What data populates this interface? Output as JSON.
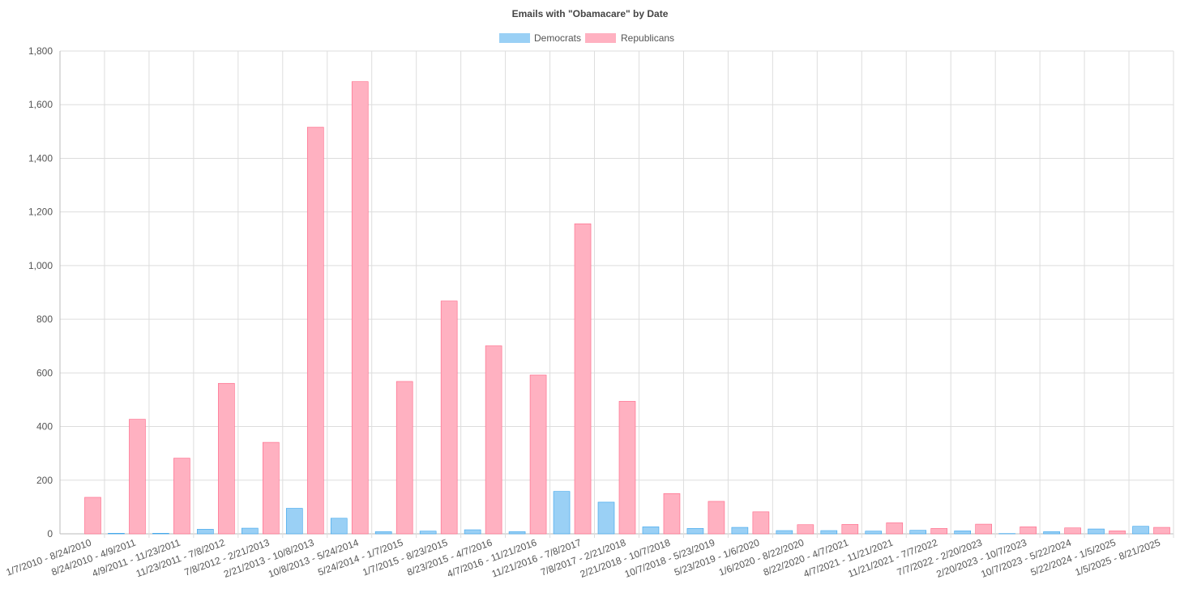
{
  "chart_data": {
    "type": "bar",
    "title": "Emails with \"Obamacare\" by Date",
    "legend_position": "top-center",
    "grid": true,
    "ylim": [
      0,
      1800
    ],
    "yticks": [
      0,
      200,
      400,
      600,
      800,
      1000,
      1200,
      1400,
      1600,
      1800
    ],
    "ytick_labels": [
      "0",
      "200",
      "400",
      "600",
      "800",
      "1,000",
      "1,200",
      "1,400",
      "1,600",
      "1,800"
    ],
    "categories": [
      "1/7/2010 - 8/24/2010",
      "8/24/2010 - 4/9/2011",
      "4/9/2011 - 11/23/2011",
      "11/23/2011 - 7/8/2012",
      "7/8/2012 - 2/21/2013",
      "2/21/2013 - 10/8/2013",
      "10/8/2013 - 5/24/2014",
      "5/24/2014 - 1/7/2015",
      "1/7/2015 - 8/23/2015",
      "8/23/2015 - 4/7/2016",
      "4/7/2016 - 11/21/2016",
      "11/21/2016 - 7/8/2017",
      "7/8/2017 - 2/21/2018",
      "2/21/2018 - 10/7/2018",
      "10/7/2018 - 5/23/2019",
      "5/23/2019 - 1/6/2020",
      "1/6/2020 - 8/22/2020",
      "8/22/2020 - 4/7/2021",
      "4/7/2021 - 11/21/2021",
      "11/21/2021 - 7/7/2022",
      "7/7/2022 - 2/20/2023",
      "2/20/2023 - 10/7/2023",
      "10/7/2023 - 5/22/2024",
      "5/22/2024 - 1/5/2025",
      "1/5/2025 - 8/21/2025"
    ],
    "series": [
      {
        "name": "Democrats",
        "color": "#9ad0f5",
        "border": "#36a2eb",
        "values": [
          0,
          2,
          2,
          17,
          21,
          95,
          58,
          8,
          10,
          15,
          8,
          158,
          118,
          26,
          20,
          24,
          12,
          12,
          10,
          13,
          11,
          1,
          8,
          18,
          28
        ]
      },
      {
        "name": "Republicans",
        "color": "#ffb1c1",
        "border": "#ff6384",
        "values": [
          136,
          427,
          282,
          561,
          341,
          1516,
          1686,
          568,
          868,
          701,
          592,
          1156,
          494,
          150,
          121,
          82,
          34,
          35,
          41,
          20,
          36,
          26,
          22,
          11,
          24
        ]
      }
    ]
  }
}
